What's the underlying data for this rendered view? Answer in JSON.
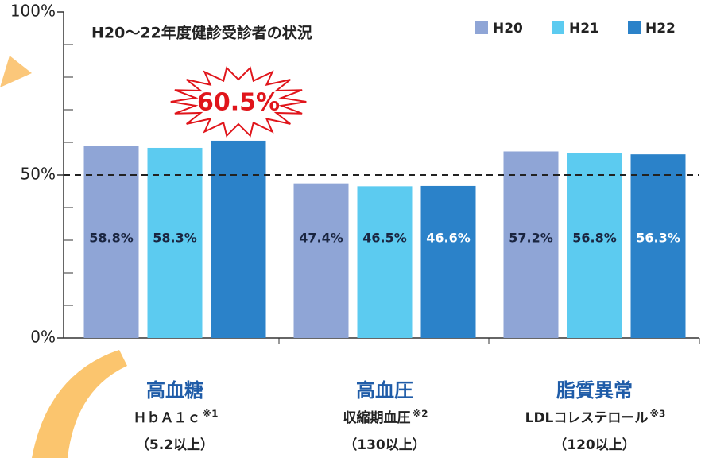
{
  "chart_data": {
    "type": "bar",
    "title": "H20〜22年度健診受診者の状況",
    "categories": [
      "高血糖",
      "高血圧",
      "脂質異常"
    ],
    "category_details": [
      {
        "measure": "ＨｂＡ１ｃ",
        "note": "※1",
        "range": "（5.2以上）"
      },
      {
        "measure": "収縮期血圧",
        "note": "※2",
        "range": "（130以上）"
      },
      {
        "measure": "LDLコレステロール",
        "note": "※3",
        "range": "（120以上）"
      }
    ],
    "series": [
      {
        "name": "H20",
        "color": "#8fa5d6",
        "values": [
          58.8,
          47.4,
          57.2
        ],
        "value_labels": [
          "58.8%",
          "47.4%",
          "57.2%"
        ]
      },
      {
        "name": "H21",
        "color": "#5ccbf0",
        "values": [
          58.3,
          46.5,
          56.8
        ],
        "value_labels": [
          "58.3%",
          "46.5%",
          "56.8%"
        ]
      },
      {
        "name": "H22",
        "color": "#2b82c9",
        "values": [
          60.5,
          46.6,
          56.3
        ],
        "value_labels": [
          "60.5%",
          "46.6%",
          "56.3%"
        ]
      }
    ],
    "ylim": [
      0,
      100
    ],
    "yticks": [
      {
        "value": 0,
        "label": "0%"
      },
      {
        "value": 50,
        "label": "50%"
      },
      {
        "value": 100,
        "label": "100%"
      }
    ],
    "yminorticks": [
      10,
      20,
      30,
      40,
      60,
      70,
      80,
      90
    ],
    "reference_line": 50,
    "legend": "top-right"
  }
}
